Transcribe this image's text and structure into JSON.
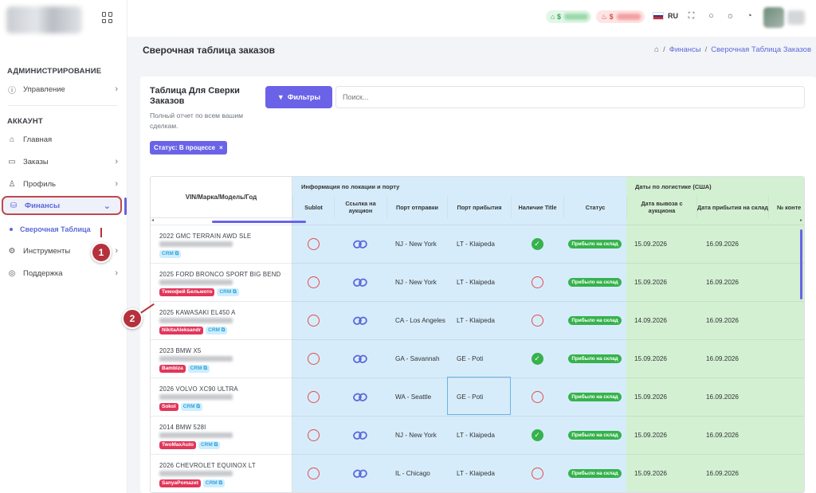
{
  "sidebar": {
    "section_admin": "АДМИНИСТРИРОВАНИЕ",
    "item_manage": "Управление",
    "section_account": "АККАУНТ",
    "item_home": "Главная",
    "item_orders": "Заказы",
    "item_profile": "Профиль",
    "item_finance": "Финансы",
    "sub_reconcile": "Сверочная Таблица",
    "item_tools": "Инструменты",
    "item_support": "Поддержка"
  },
  "topbar": {
    "balance_green_symbol": "$",
    "balance_red_symbol": "$",
    "language": "RU"
  },
  "page": {
    "title": "Сверочная таблица заказов",
    "breadcrumb_finance": "Финансы",
    "breadcrumb_current": "Сверочная Таблица Заказов"
  },
  "card": {
    "title": "Таблица Для Сверки Заказов",
    "subtitle": "Полный отчет по всем вашим сделкам.",
    "filters_button": "Фильтры",
    "search_placeholder": "Поиск...",
    "status_chip": "Статус: В процессе",
    "status_chip_close": "×"
  },
  "table": {
    "col_vin": "VIN/Марка/Модель/Год",
    "group_location": "Информация по локации и порту",
    "group_logistics": "Даты по логистике (США)",
    "col_sublot": "Sublot",
    "col_auction_link": "Ссылка на аукцион",
    "col_departure_port": "Порт отправки",
    "col_arrival_port": "Порт прибытия",
    "col_title": "Наличие Title",
    "col_status": "Статус",
    "col_pickup_date": "Дата вывоза с аукциона",
    "col_arrival_date": "Дата прибытия на склад",
    "col_container": "№ конте",
    "rows": [
      {
        "vehicle": "2022 GMC TERRAIN AWD SLE",
        "user": "",
        "crm": "CRM",
        "departure": "NJ - New York",
        "arrival": "LT - Klaipeda",
        "title": "yes",
        "status": "Прибыло на склад",
        "pickup": "15.09.2026",
        "arrived": "16.09.2026"
      },
      {
        "vehicle": "2025 FORD BRONCO SPORT BIG BEND",
        "user": "Тимофей Бельмото",
        "crm": "CRM",
        "departure": "NJ - New York",
        "arrival": "LT - Klaipeda",
        "title": "no",
        "status": "Прибыло на склад",
        "pickup": "15.09.2026",
        "arrived": "16.09.2026"
      },
      {
        "vehicle": "2025 KAWASAKI EL450 A",
        "user": "NikitaAleksandr",
        "crm": "CRM",
        "departure": "CA - Los Angeles",
        "arrival": "LT - Klaipeda",
        "title": "no",
        "status": "Прибыло на склад",
        "pickup": "14.09.2026",
        "arrived": "16.09.2026"
      },
      {
        "vehicle": "2023 BMW X5",
        "user": "Bambiza",
        "crm": "CRM",
        "departure": "GA - Savannah",
        "arrival": "GE - Poti",
        "title": "yes",
        "status": "Прибыло на склад",
        "pickup": "15.09.2026",
        "arrived": "16.09.2026"
      },
      {
        "vehicle": "2026 VOLVO XC90 ULTRA",
        "user": "Sokol",
        "crm": "CRM",
        "departure": "WA - Seattle",
        "arrival": "GE - Poti",
        "title": "no",
        "status": "Прибыло на склад",
        "pickup": "15.09.2026",
        "arrived": "16.09.2026"
      },
      {
        "vehicle": "2014 BMW 528I",
        "user": "TwoMaxAuto",
        "crm": "CRM",
        "departure": "NJ - New York",
        "arrival": "LT - Klaipeda",
        "title": "yes",
        "status": "Прибыло на склад",
        "pickup": "15.09.2026",
        "arrived": "16.09.2026"
      },
      {
        "vehicle": "2026 CHEVROLET EQUINOX LT",
        "user": "SanyaPomazet",
        "crm": "CRM",
        "departure": "IL - Chicago",
        "arrival": "LT - Klaipeda",
        "title": "no",
        "status": "Прибыло на склад",
        "pickup": "15.09.2026",
        "arrived": "16.09.2026"
      }
    ]
  },
  "annotations": {
    "marker_1": "1",
    "marker_2": "2"
  },
  "colors": {
    "accent": "#6a63e8",
    "marker": "#b5323c",
    "blue_group": "#d6ecfb",
    "green_group": "#d3f0d3"
  }
}
